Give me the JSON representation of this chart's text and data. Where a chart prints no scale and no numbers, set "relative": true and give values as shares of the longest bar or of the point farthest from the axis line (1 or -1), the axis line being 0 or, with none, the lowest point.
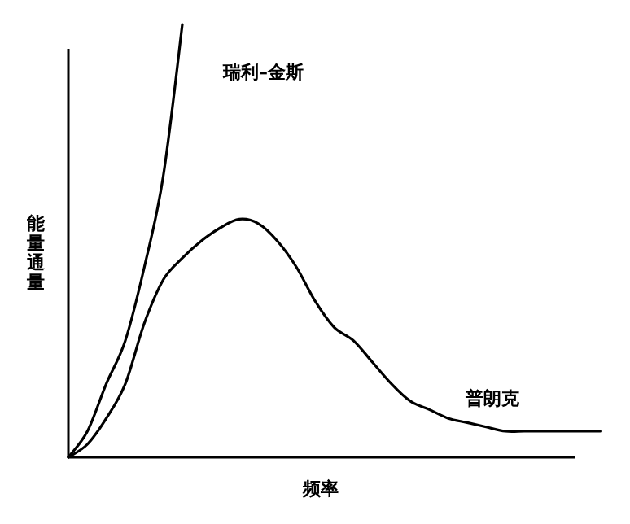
{
  "chart_data": {
    "type": "line",
    "relative": true,
    "xlabel": "频率",
    "ylabel": "能量通量",
    "categories": [
      null,
      null,
      null,
      null,
      null,
      null,
      null,
      null,
      null,
      null,
      null,
      null,
      null,
      null,
      null,
      null,
      null,
      null,
      null,
      null,
      null,
      null,
      null,
      null,
      null,
      null,
      null,
      null,
      null
    ],
    "series": [
      {
        "name": "瑞利–金斯",
        "color": "#000000",
        "values": [
          0,
          0.06,
          0.17,
          0.27,
          0.44,
          0.65,
          1,
          null,
          null,
          null,
          null,
          null,
          null,
          null,
          null,
          null,
          null,
          null,
          null,
          null,
          null,
          null,
          null,
          null,
          null,
          null,
          null,
          null,
          null
        ]
      },
      {
        "name": "普朗克",
        "color": "#000000",
        "values": [
          0,
          0.03,
          0.09,
          0.17,
          0.31,
          0.41,
          0.46,
          0.5,
          0.53,
          0.55,
          0.54,
          0.5,
          0.44,
          0.36,
          0.3,
          0.27,
          0.22,
          0.17,
          0.13,
          0.11,
          0.09,
          0.08,
          0.07,
          0.06,
          0.06,
          0.06,
          0.06,
          0.06,
          0.06
        ]
      }
    ]
  }
}
